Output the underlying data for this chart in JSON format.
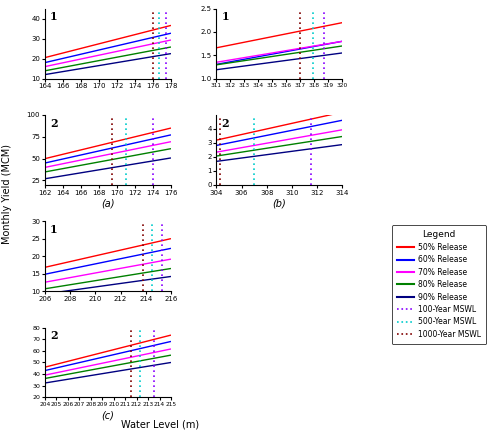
{
  "panels": {
    "a1": {
      "xlim": [
        164,
        178
      ],
      "xticks": [
        164,
        166,
        168,
        170,
        172,
        174,
        176,
        178
      ],
      "ylim": [
        10,
        45
      ],
      "yticks": [
        10,
        20,
        30,
        40
      ],
      "lines": [
        {
          "slope": 1.15,
          "intercept": -168.1,
          "color": "#ff0000"
        },
        {
          "slope": 1.05,
          "intercept": -154.2,
          "color": "#0000ff"
        },
        {
          "slope": 0.95,
          "intercept": -139.8,
          "color": "#ff00ff"
        },
        {
          "slope": 0.85,
          "intercept": -125.5,
          "color": "#008000"
        },
        {
          "slope": 0.75,
          "intercept": -111.0,
          "color": "#000080"
        }
      ],
      "vlines": [
        {
          "x": 176.0,
          "color": "#800000"
        },
        {
          "x": 176.7,
          "color": "#00cccc"
        },
        {
          "x": 177.5,
          "color": "#8800ff"
        }
      ],
      "label": "1"
    },
    "a2": {
      "xlim": [
        162,
        176
      ],
      "xticks": [
        162,
        164,
        166,
        168,
        170,
        172,
        174,
        176
      ],
      "ylim": [
        20,
        100
      ],
      "yticks": [
        25,
        50,
        75,
        100
      ],
      "lines": [
        {
          "slope": 2.5,
          "intercept": -355.0,
          "color": "#ff0000"
        },
        {
          "slope": 2.3,
          "intercept": -327.6,
          "color": "#0000ff"
        },
        {
          "slope": 2.1,
          "intercept": -300.2,
          "color": "#ff00ff"
        },
        {
          "slope": 1.9,
          "intercept": -273.0,
          "color": "#008000"
        },
        {
          "slope": 1.7,
          "intercept": -248.4,
          "color": "#000080"
        }
      ],
      "vlines": [
        {
          "x": 169.5,
          "color": "#800000"
        },
        {
          "x": 171.0,
          "color": "#00cccc"
        },
        {
          "x": 174.0,
          "color": "#8800ff"
        }
      ],
      "label": "2",
      "sublabel": "(a)"
    },
    "b1": {
      "xlim": [
        311,
        320
      ],
      "xticks": [
        311,
        312,
        313,
        314,
        315,
        316,
        317,
        318,
        319,
        320
      ],
      "ylim": [
        1.0,
        2.5
      ],
      "yticks": [
        1.0,
        1.5,
        2.0,
        2.5
      ],
      "lines": [
        {
          "slope": 0.06,
          "intercept": -17.0,
          "color": "#ff0000"
        },
        {
          "slope": 0.055,
          "intercept": -15.8,
          "color": "#0000ff"
        },
        {
          "slope": 0.05,
          "intercept": -14.2,
          "color": "#ff00ff"
        },
        {
          "slope": 0.045,
          "intercept": -12.7,
          "color": "#008000"
        },
        {
          "slope": 0.04,
          "intercept": -11.25,
          "color": "#000080"
        }
      ],
      "vlines": [
        {
          "x": 317.0,
          "color": "#800000"
        },
        {
          "x": 317.9,
          "color": "#00cccc"
        },
        {
          "x": 318.7,
          "color": "#8800ff"
        }
      ],
      "label": "1"
    },
    "b2": {
      "xlim": [
        304,
        314
      ],
      "xticks": [
        304,
        306,
        308,
        310,
        312,
        314
      ],
      "ylim": [
        0,
        5
      ],
      "yticks": [
        0,
        1,
        2,
        3,
        4
      ],
      "lines": [
        {
          "slope": 0.2,
          "intercept": -57.6,
          "color": "#ff0000"
        },
        {
          "slope": 0.18,
          "intercept": -51.9,
          "color": "#0000ff"
        },
        {
          "slope": 0.16,
          "intercept": -46.3,
          "color": "#ff00ff"
        },
        {
          "slope": 0.14,
          "intercept": -40.5,
          "color": "#008000"
        },
        {
          "slope": 0.12,
          "intercept": -34.8,
          "color": "#000080"
        }
      ],
      "vlines": [
        {
          "x": 304.3,
          "color": "#800000"
        },
        {
          "x": 307.0,
          "color": "#00cccc"
        },
        {
          "x": 311.5,
          "color": "#8800ff"
        }
      ],
      "label": "2",
      "sublabel": "(b)"
    },
    "c1": {
      "xlim": [
        206,
        216
      ],
      "xticks": [
        206,
        208,
        210,
        212,
        214,
        216
      ],
      "ylim": [
        10,
        30
      ],
      "yticks": [
        10,
        15,
        20,
        25,
        30
      ],
      "lines": [
        {
          "slope": 0.82,
          "intercept": -152.1,
          "color": "#ff0000"
        },
        {
          "slope": 0.74,
          "intercept": -137.6,
          "color": "#0000ff"
        },
        {
          "slope": 0.66,
          "intercept": -123.4,
          "color": "#ff00ff"
        },
        {
          "slope": 0.58,
          "intercept": -108.8,
          "color": "#008000"
        },
        {
          "slope": 0.5,
          "intercept": -93.8,
          "color": "#000080"
        }
      ],
      "vlines": [
        {
          "x": 213.8,
          "color": "#800000"
        },
        {
          "x": 214.5,
          "color": "#00cccc"
        },
        {
          "x": 215.3,
          "color": "#8800ff"
        }
      ],
      "label": "1"
    },
    "c2": {
      "xlim": [
        204,
        215
      ],
      "xticks": [
        204,
        205,
        206,
        207,
        208,
        209,
        210,
        211,
        212,
        213,
        214,
        215
      ],
      "ylim": [
        20,
        80
      ],
      "yticks": [
        20,
        30,
        40,
        50,
        60,
        70,
        80
      ],
      "lines": [
        {
          "slope": 2.5,
          "intercept": -464.0,
          "color": "#ff0000"
        },
        {
          "slope": 2.27,
          "intercept": -420.0,
          "color": "#0000ff"
        },
        {
          "slope": 2.04,
          "intercept": -377.0,
          "color": "#ff00ff"
        },
        {
          "slope": 1.82,
          "intercept": -335.0,
          "color": "#008000"
        },
        {
          "slope": 1.6,
          "intercept": -294.0,
          "color": "#000080"
        }
      ],
      "vlines": [
        {
          "x": 211.5,
          "color": "#800000"
        },
        {
          "x": 212.3,
          "color": "#00cccc"
        },
        {
          "x": 213.5,
          "color": "#8800ff"
        }
      ],
      "label": "2",
      "sublabel": "(c)"
    }
  },
  "legend_lines": [
    {
      "label": "50% Release",
      "color": "#ff0000",
      "lw": 1.5
    },
    {
      "label": "60% Release",
      "color": "#0000ff",
      "lw": 1.5
    },
    {
      "label": "70% Release",
      "color": "#ff00ff",
      "lw": 1.5
    },
    {
      "label": "80% Release",
      "color": "#008000",
      "lw": 1.5
    },
    {
      "label": "90% Release",
      "color": "#000080",
      "lw": 1.5
    },
    {
      "label": "100-Year MSWL",
      "color": "#8800ff",
      "lw": 1.2,
      "ls": "dotted"
    },
    {
      "label": "500-Year MSWL",
      "color": "#00cccc",
      "lw": 1.2,
      "ls": "dotted"
    },
    {
      "label": "1000-Year MSWL",
      "color": "#800000",
      "lw": 1.2,
      "ls": "dotted"
    }
  ],
  "ylabel": "Monthly Yield (MCM)",
  "xlabel": "Water Level (m)"
}
